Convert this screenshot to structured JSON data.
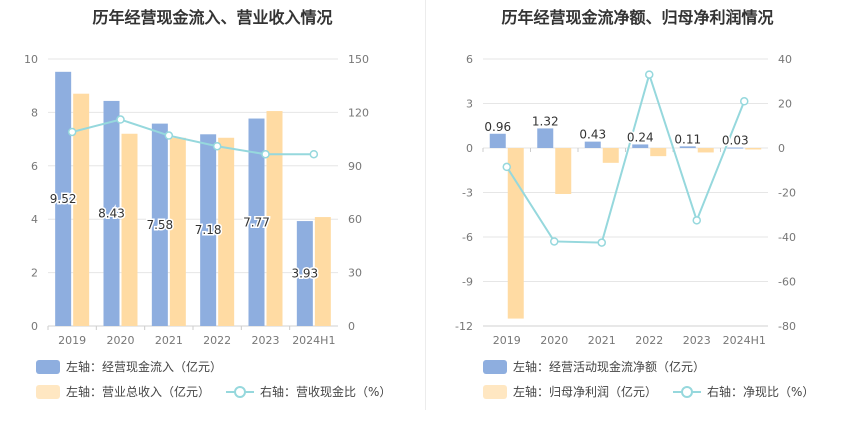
{
  "colors": {
    "bar1": "#8eaedf",
    "bar2": "#ffdba3",
    "line": "#96d8dd",
    "grid": "#e6e6e6",
    "axis_text": "#777777"
  },
  "chart_data": [
    {
      "type": "bar",
      "title": "历年经营现金流入、营业收入情况",
      "categories": [
        "2019",
        "2020",
        "2021",
        "2022",
        "2023",
        "2024H1"
      ],
      "left_axis": {
        "ylim": [
          0,
          10
        ],
        "ticks": [
          0,
          2,
          4,
          6,
          8,
          10
        ]
      },
      "right_axis": {
        "ylim": [
          0,
          150
        ],
        "ticks": [
          0,
          30,
          60,
          90,
          120,
          150
        ]
      },
      "series": [
        {
          "name": "经营现金流入",
          "axis": "left",
          "kind": "bar",
          "values": [
            9.52,
            8.43,
            7.58,
            7.18,
            7.77,
            3.93
          ],
          "labels": [
            "9.52",
            "8.43",
            "7.58",
            "7.18",
            "7.77",
            "3.93"
          ]
        },
        {
          "name": "营业总收入",
          "axis": "left",
          "kind": "bar",
          "values": [
            8.7,
            7.2,
            7.05,
            7.05,
            8.05,
            4.08
          ]
        },
        {
          "name": "营收现金比",
          "axis": "right",
          "kind": "line",
          "values": [
            109,
            116,
            107,
            101,
            96.5,
            96.5
          ]
        }
      ],
      "legend": [
        {
          "text": "左轴：经营现金流入（亿元）"
        },
        {
          "text": "左轴：营业总收入（亿元）"
        },
        {
          "text": "右轴：营收现金比（%）"
        }
      ]
    },
    {
      "type": "bar",
      "title": "历年经营现金流净额、归母净利润情况",
      "categories": [
        "2019",
        "2020",
        "2021",
        "2022",
        "2023",
        "2024H1"
      ],
      "left_axis": {
        "ylim": [
          -12,
          6
        ],
        "ticks": [
          -12,
          -9,
          -6,
          -3,
          0,
          3,
          6
        ]
      },
      "right_axis": {
        "ylim": [
          -80,
          40
        ],
        "ticks": [
          -80,
          -60,
          -40,
          -20,
          0,
          20,
          40
        ]
      },
      "series": [
        {
          "name": "经营活动现金流净额",
          "axis": "left",
          "kind": "bar",
          "values": [
            0.96,
            1.32,
            0.43,
            0.24,
            0.11,
            0.03
          ],
          "labels": [
            "0.96",
            "1.32",
            "0.43",
            "0.24",
            "0.11",
            "0.03"
          ]
        },
        {
          "name": "归母净利润",
          "axis": "left",
          "kind": "bar",
          "values": [
            -11.5,
            -3.1,
            -1.0,
            -0.55,
            -0.3,
            -0.1
          ]
        },
        {
          "name": "净现比",
          "axis": "right",
          "kind": "line",
          "values": [
            -8.5,
            -42,
            -42.5,
            33,
            -32.5,
            21
          ]
        }
      ],
      "legend": [
        {
          "text": "左轴：经营活动现金流净额（亿元）"
        },
        {
          "text": "左轴：归母净利润（亿元）"
        },
        {
          "text": "右轴：净现比（%）"
        }
      ]
    }
  ]
}
